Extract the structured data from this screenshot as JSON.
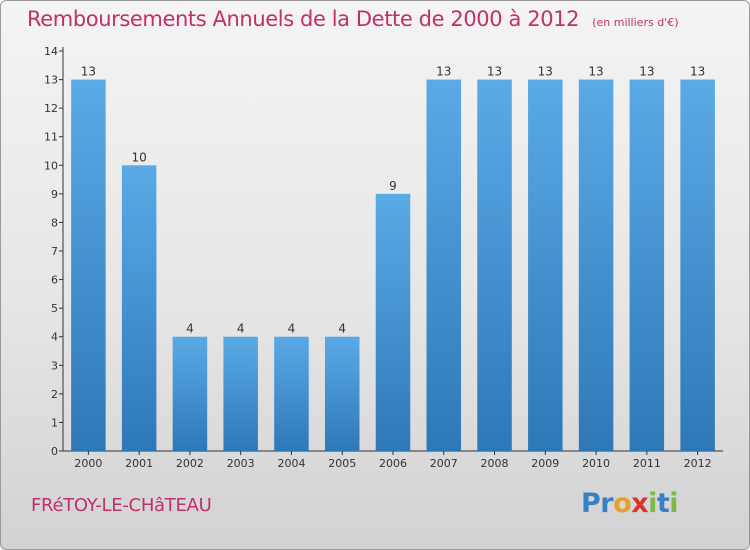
{
  "chart_data": {
    "type": "bar",
    "title": "Remboursements Annuels de la Dette de 2000 à 2012",
    "subtitle": "(en milliers d'€)",
    "categories": [
      "2000",
      "2001",
      "2002",
      "2003",
      "2004",
      "2005",
      "2006",
      "2007",
      "2008",
      "2009",
      "2010",
      "2011",
      "2012"
    ],
    "values": [
      13,
      10,
      4,
      4,
      4,
      4,
      9,
      13,
      13,
      13,
      13,
      13,
      13
    ],
    "data_labels": [
      "13",
      "10",
      "4",
      "4",
      "4",
      "4",
      "9",
      "13",
      "13",
      "13",
      "13",
      "13",
      "13"
    ],
    "ylim": [
      0,
      14
    ],
    "yticks": [
      "0",
      "1",
      "2",
      "3",
      "4",
      "5",
      "6",
      "7",
      "8",
      "9",
      "10",
      "11",
      "12",
      "13",
      "14"
    ],
    "grid": false,
    "bar_color": "#4f9fdc",
    "xlabel": "",
    "ylabel": ""
  },
  "footer": {
    "commune": "FRéTOY-LE-CHâTEAU",
    "logo_letters": [
      {
        "ch": "P",
        "color": "#3a7fc4"
      },
      {
        "ch": "r",
        "color": "#3a7fc4"
      },
      {
        "ch": "o",
        "color": "#e8a02a"
      },
      {
        "ch": "x",
        "color": "#d8342e"
      },
      {
        "ch": "i",
        "color": "#7cb94a"
      },
      {
        "ch": "t",
        "color": "#3a7fc4"
      },
      {
        "ch": "i",
        "color": "#7cb94a"
      }
    ]
  },
  "colors": {
    "accent": "#c0306a",
    "text": "#333333"
  }
}
